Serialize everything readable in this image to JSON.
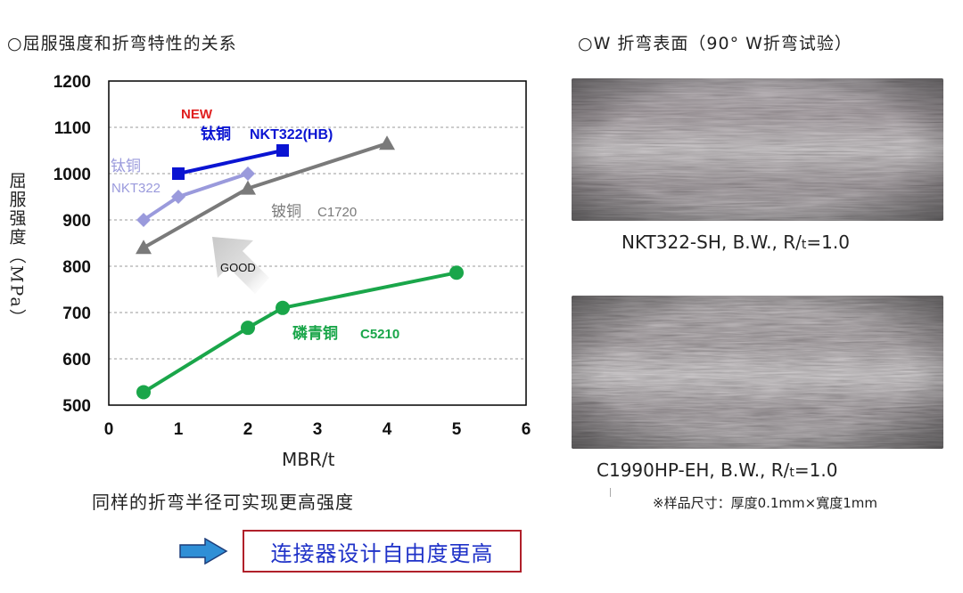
{
  "titles": {
    "left": "○屈服强度和折弯特性的关系",
    "right": "○W 折弯表面（90° W折弯试验）"
  },
  "chart_data": {
    "type": "line",
    "xlabel": "MBR/t",
    "ylabel": "屈服强度（MPa）",
    "xlim": [
      0,
      6
    ],
    "ylim": [
      500,
      1200
    ],
    "xticks": [
      0,
      1,
      2,
      3,
      4,
      5,
      6
    ],
    "yticks": [
      500,
      600,
      700,
      800,
      900,
      1000,
      1100,
      1200
    ],
    "grid": "horizontal-dashed",
    "series": [
      {
        "name": "钛铜 NKT322(HB)",
        "color": "#0a14d2",
        "marker": "square",
        "x": [
          1,
          2.5
        ],
        "y": [
          1000,
          1050
        ]
      },
      {
        "name": "钛铜 NKT322",
        "color": "#9a9adc",
        "marker": "diamond",
        "x": [
          0.5,
          1,
          2
        ],
        "y": [
          900,
          950,
          1000
        ]
      },
      {
        "name": "铍铜 C1720",
        "color": "#7a7a7a",
        "marker": "triangle",
        "x": [
          0.5,
          2,
          4
        ],
        "y": [
          840,
          968,
          1065
        ]
      },
      {
        "name": "磷青铜 C5210",
        "color": "#1aa64a",
        "marker": "circle",
        "x": [
          0.5,
          2,
          2.5,
          5
        ],
        "y": [
          528,
          667,
          710,
          786
        ]
      }
    ],
    "annotations": {
      "new": "NEW",
      "ti_hb_label": "钛铜",
      "ti_hb_grade": "NKT322(HB)",
      "ti_label": "钛铜",
      "ti_grade": "NKT322",
      "be_label": "铍铜",
      "be_grade": "C1720",
      "pb_label": "磷青铜",
      "pb_grade": "C5210",
      "good": "GOOD"
    }
  },
  "note": "同样的折弯半径可实现更高强度",
  "conclusion": "连接器设计自由度更高",
  "photos": [
    {
      "name": "NKT322-SH photo",
      "caption_prefix": "NKT322-SH, B.W., R/",
      "caption_sub": "t",
      "caption_suffix": "=1.0"
    },
    {
      "name": "C1990HP-EH photo",
      "caption_prefix": "C1990HP-EH, B.W., R/",
      "caption_sub": "t",
      "caption_suffix": "=1.0"
    }
  ],
  "sample_note": "※样品尺寸：厚度0.1mm×寬度1mm",
  "colors": {
    "accent_arrow": "#2f8fd6",
    "conclusion_border": "#b0202a",
    "conclusion_text": "#1f32c8",
    "new_label": "#e02020"
  }
}
